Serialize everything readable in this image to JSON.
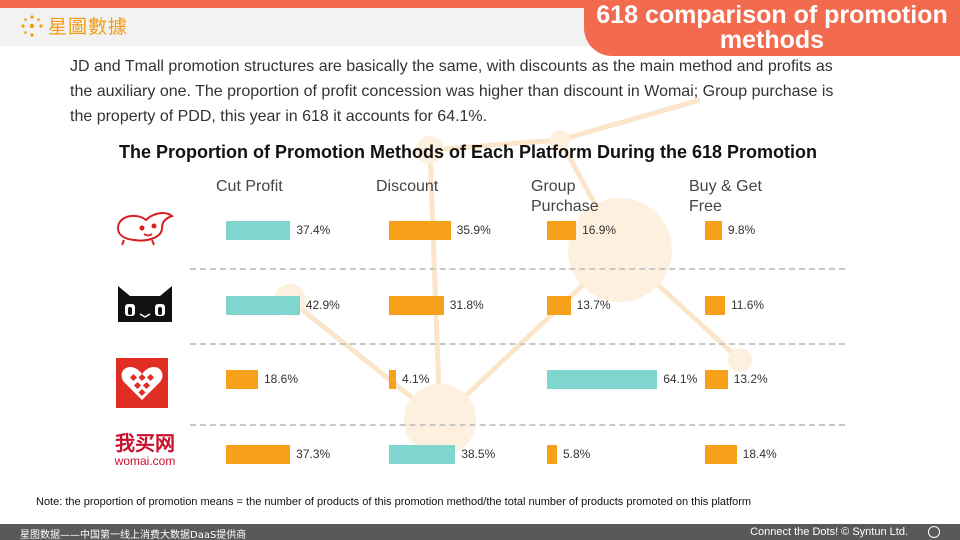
{
  "header": {
    "logo_text": "星圖數據",
    "title": "618 comparison of promotion methods"
  },
  "intro_text": "JD and Tmall promotion structures are basically the same, with discounts as the main method and profits as the auxiliary one. The proportion of profit concession was higher than discount in Womai; Group purchase is the property of PDD, this year in 618 it accounts for 64.1%.",
  "platforms": [
    {
      "name": "JD",
      "logo_icon": "jd-dog-icon",
      "logo_text": ""
    },
    {
      "name": "Tmall",
      "logo_icon": "tmall-cat-icon",
      "logo_text": ""
    },
    {
      "name": "PDD",
      "logo_icon": "pdd-heart-icon",
      "logo_text": ""
    },
    {
      "name": "Womai",
      "logo_icon": "womai-logo",
      "logo_text_cn": "我买网",
      "logo_text_en": "womai.com"
    }
  ],
  "chart_data": {
    "type": "bar",
    "title": "The Proportion of Promotion Methods of Each Platform During the 618 Promotion",
    "categories": [
      "Cut Profit",
      "Discount",
      "Group Purchase",
      "Buy & Get Free"
    ],
    "category_labels": [
      [
        "Cut Profit"
      ],
      [
        "Discount"
      ],
      [
        "Group",
        "Purchase"
      ],
      [
        "Buy & Get",
        "Free"
      ]
    ],
    "unit": "%",
    "series": [
      {
        "name": "JD",
        "values": [
          37.4,
          35.9,
          16.9,
          9.8
        ],
        "labels": [
          "37.4%",
          "35.9%",
          "16.9%",
          "9.8%"
        ],
        "highlight": [
          0
        ]
      },
      {
        "name": "Tmall",
        "values": [
          42.9,
          31.8,
          13.7,
          11.6
        ],
        "labels": [
          "42.9%",
          "31.8%",
          "13.7%",
          "11.6%"
        ],
        "highlight": [
          0
        ]
      },
      {
        "name": "PDD",
        "values": [
          18.6,
          4.1,
          64.1,
          13.2
        ],
        "labels": [
          "18.6%",
          "4.1%",
          "64.1%",
          "13.2%"
        ],
        "highlight": [
          2
        ]
      },
      {
        "name": "Womai",
        "values": [
          37.3,
          38.5,
          5.8,
          18.4
        ],
        "labels": [
          "37.3%",
          "38.5%",
          "5.8%",
          "18.4%"
        ],
        "highlight": [
          1
        ]
      }
    ],
    "colors": {
      "highlight": "#7fd6cf",
      "normal": "#f7a11a"
    }
  },
  "note": "Note: the proportion of promotion means = the number of products of this promotion method/the total number of products promoted on this platform",
  "footer": {
    "left": "星图数据——中国第一线上消费大数据DaaS提供商",
    "right": "Connect the Dots! © Syntun Ltd."
  },
  "colors": {
    "accent": "#f26b4f",
    "logo": "#f39c12",
    "footer": "#595959"
  }
}
